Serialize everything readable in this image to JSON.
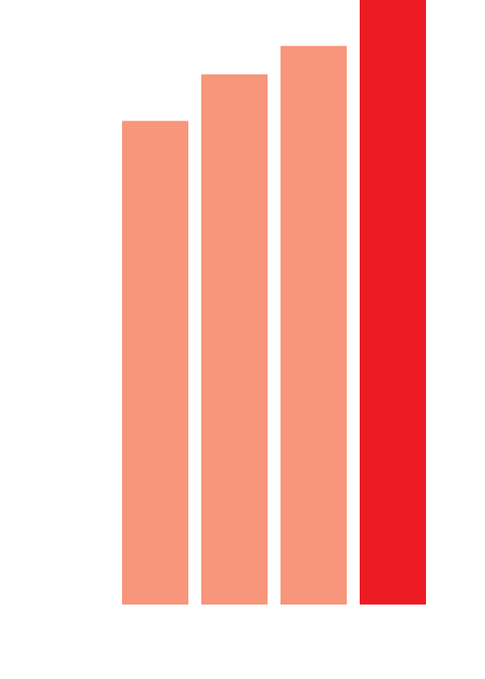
{
  "chart_data": {
    "type": "bar",
    "categories": [
      "",
      "",
      "",
      ""
    ],
    "values": [
      80,
      87.7,
      92.4,
      100
    ],
    "ylim": [
      0,
      100
    ],
    "grid": false,
    "colors": [
      "#f7967a",
      "#f7967a",
      "#f7967a",
      "#ed1c24"
    ],
    "title": "",
    "xlabel": "",
    "ylabel": ""
  }
}
